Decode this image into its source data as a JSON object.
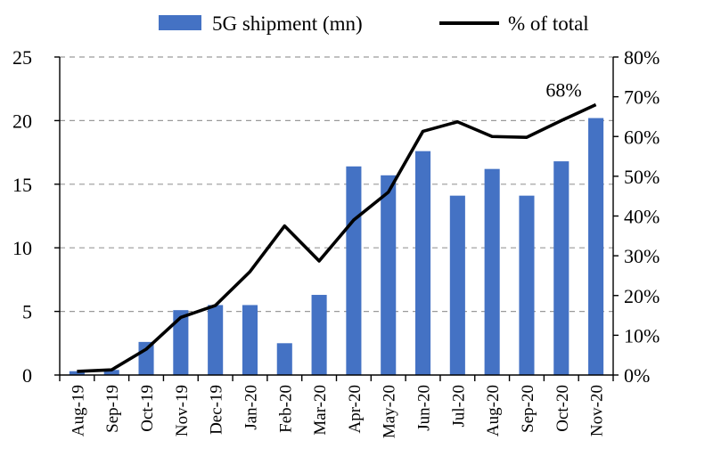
{
  "chart_data": {
    "type": "bar",
    "categories": [
      "Aug-19",
      "Sep-19",
      "Oct-19",
      "Nov-19",
      "Dec-19",
      "Jan-20",
      "Feb-20",
      "Mar-20",
      "Apr-20",
      "May-20",
      "Jun-20",
      "Jul-20",
      "Aug-20",
      "Sep-20",
      "Oct-20",
      "Nov-20"
    ],
    "series": [
      {
        "name": "5G shipment (mn)",
        "kind": "bar",
        "axis": "left",
        "values": [
          0.3,
          0.4,
          2.6,
          5.1,
          5.5,
          5.5,
          2.5,
          6.3,
          16.4,
          15.7,
          17.6,
          14.1,
          16.2,
          14.1,
          16.8,
          20.2
        ],
        "color": "#4472C4"
      },
      {
        "name": "% of total",
        "kind": "line",
        "axis": "right",
        "values": [
          0.009,
          0.013,
          0.065,
          0.145,
          0.175,
          0.26,
          0.375,
          0.287,
          0.39,
          0.46,
          0.613,
          0.637,
          0.6,
          0.598,
          0.64,
          0.68
        ],
        "color": "#000000"
      }
    ],
    "y_left": {
      "ylim": [
        0,
        25
      ],
      "ticks": [
        0,
        5,
        10,
        15,
        20,
        25
      ],
      "tick_labels": [
        "0",
        "5",
        "10",
        "15",
        "20",
        "25"
      ]
    },
    "y_right": {
      "ylim": [
        0,
        0.8
      ],
      "ticks": [
        0,
        0.1,
        0.2,
        0.3,
        0.4,
        0.5,
        0.6,
        0.7,
        0.8
      ],
      "tick_labels": [
        "0%",
        "10%",
        "20%",
        "30%",
        "40%",
        "50%",
        "60%",
        "70%",
        "80%"
      ]
    },
    "grid": true,
    "legend_position": "top",
    "annotations": [
      {
        "text": "68%",
        "category": "Nov-20",
        "series": "% of total"
      }
    ],
    "title": "",
    "xlabel": "",
    "ylabel": ""
  }
}
